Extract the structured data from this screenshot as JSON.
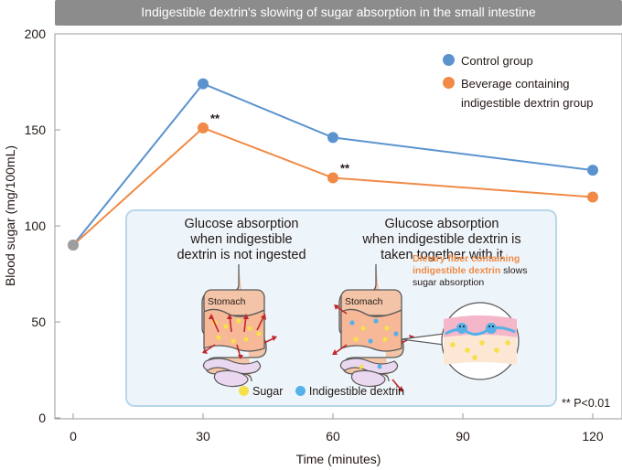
{
  "chart_data": {
    "type": "line",
    "title": "Indigestible dextrin's slowing of sugar absorption in the small intestine",
    "xlabel": "Time (minutes)",
    "ylabel": "Blood sugar (mg/100mL)",
    "x": [
      0,
      30,
      60,
      120
    ],
    "xticks": [
      "0",
      "30",
      "60",
      "90",
      "120"
    ],
    "yticks": [
      "0",
      "50",
      "100",
      "150",
      "200"
    ],
    "xlim": [
      0,
      120
    ],
    "ylim": [
      0,
      200
    ],
    "series": [
      {
        "name": "Control group",
        "color": "#5b93cf",
        "values": [
          90,
          174,
          146,
          129
        ]
      },
      {
        "name": "Beverage containing indigestible dextrin group",
        "legend_lines": [
          "Beverage containing",
          "indigestible dextrin group"
        ],
        "color": "#f08a46",
        "values": [
          90,
          151,
          125,
          115
        ]
      }
    ],
    "start_point_color": "#9e9e9e",
    "annotations": [
      {
        "text": "**",
        "x": 30,
        "series": 1
      },
      {
        "text": "**",
        "x": 60,
        "series": 1
      }
    ],
    "note": "** P<0.01",
    "legend_position": "top-right",
    "grid": false
  },
  "inset": {
    "left_heading": [
      "Glucose absorption",
      "when indigestible",
      "dextrin is not ingested"
    ],
    "right_heading": [
      "Glucose absorption",
      "when indigestible dextrin is",
      "taken together with it"
    ],
    "stomach_label": "Stomach",
    "fiber_note_highlight": [
      "Dietary fiber containing",
      "indigestible dextrin"
    ],
    "fiber_note_rest": [
      " slows",
      "sugar absorption"
    ],
    "legend_sugar": "Sugar",
    "legend_dextrin": "Indigestible dextrin",
    "sugar_color": "#f7e04a",
    "dextrin_color": "#55b1e8"
  }
}
